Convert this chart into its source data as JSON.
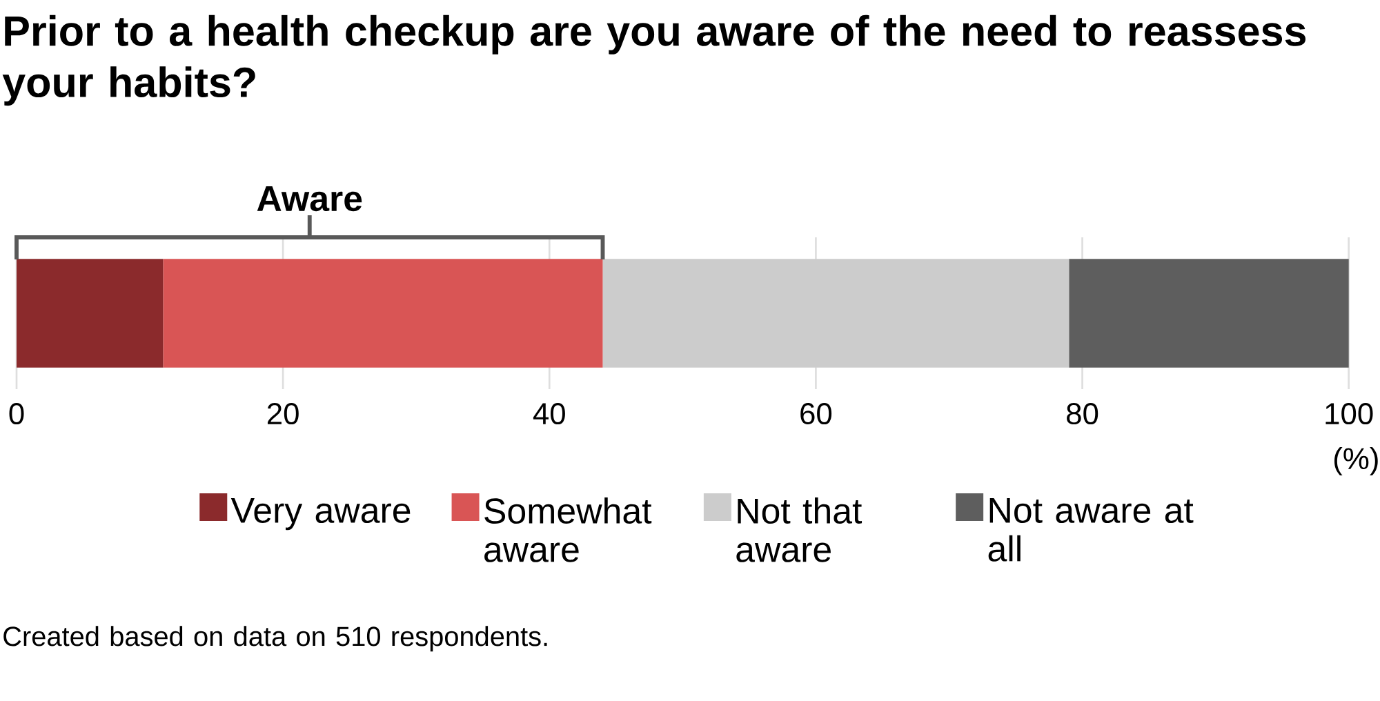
{
  "chart_data": {
    "type": "bar",
    "orientation": "horizontal",
    "stacked": true,
    "title": "Prior to a health checkup are you aware of the need to reassess your habits?",
    "categories": [
      null
    ],
    "series": [
      {
        "name": "Very aware",
        "color": "#8b2a2c",
        "values": [
          11
        ]
      },
      {
        "name": "Somewhat aware",
        "color": "#d95555",
        "values": [
          33
        ]
      },
      {
        "name": "Not that aware",
        "color": "#cccccc",
        "values": [
          35
        ]
      },
      {
        "name": "Not aware at all",
        "color": "#5e5e5e",
        "values": [
          21
        ]
      }
    ],
    "xlim": [
      0,
      100
    ],
    "xticks": [
      0,
      20,
      40,
      60,
      80,
      100
    ],
    "xlabel": "(%)",
    "grid": "x",
    "legend": "bottom",
    "annotations": [
      "Aware",
      "Created based on data on 510 respondents."
    ]
  }
}
